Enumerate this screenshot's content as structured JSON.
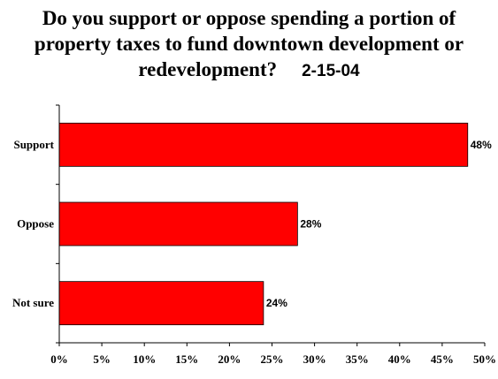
{
  "title": {
    "line1": "Do you support or oppose spending a portion of",
    "line2": "property taxes to fund downtown development or",
    "line3": "redevelopment?",
    "date": "2-15-04"
  },
  "colors": {
    "bar": "#ff0000",
    "bar_stroke": "#000000"
  },
  "chart_data": {
    "type": "bar",
    "orientation": "horizontal",
    "categories": [
      "Support",
      "Oppose",
      "Not sure"
    ],
    "values": [
      48,
      28,
      24
    ],
    "value_labels": [
      "48%",
      "28%",
      "24%"
    ],
    "xlim": [
      0,
      50
    ],
    "ticks": [
      0,
      5,
      10,
      15,
      20,
      25,
      30,
      35,
      40,
      45,
      50
    ],
    "tick_labels": [
      "0%",
      "5%",
      "10%",
      "15%",
      "20%",
      "25%",
      "30%",
      "35%",
      "40%",
      "45%",
      "50%"
    ],
    "grid": false,
    "legend": "none"
  }
}
